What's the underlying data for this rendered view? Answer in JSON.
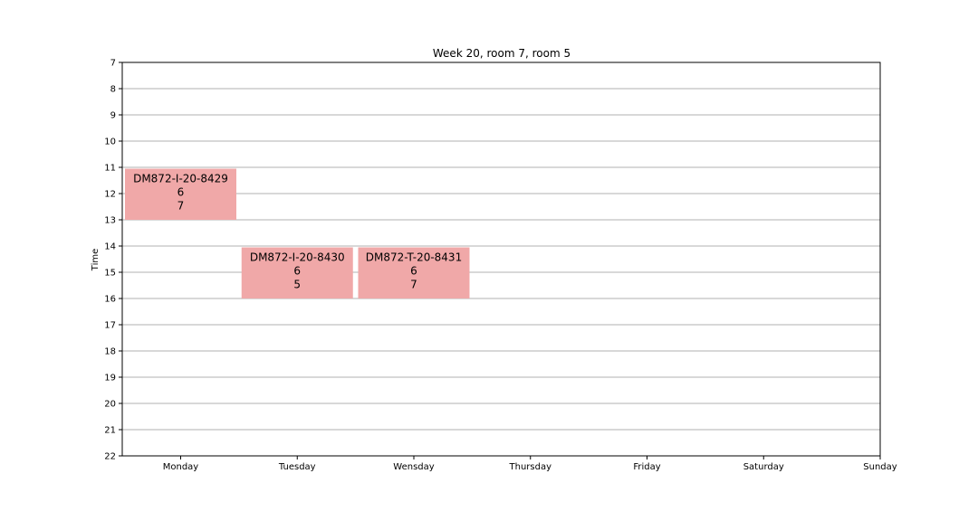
{
  "chart_data": {
    "type": "timetable",
    "title": "Week 20, room 7, room 5",
    "ylabel": "Time",
    "xlabel": "",
    "days": [
      "Monday",
      "Tuesday",
      "Wensday",
      "Thursday",
      "Friday",
      "Saturday",
      "Sunday"
    ],
    "ylim": [
      7,
      22
    ],
    "yticks": [
      7,
      8,
      9,
      10,
      11,
      12,
      13,
      14,
      15,
      16,
      17,
      18,
      19,
      20,
      21,
      22
    ],
    "grid": "horizontal",
    "events": [
      {
        "day": "Monday",
        "start": 11,
        "end": 13,
        "lines": [
          "DM872-I-20-8429",
          "6",
          "7"
        ]
      },
      {
        "day": "Tuesday",
        "start": 14,
        "end": 16,
        "lines": [
          "DM872-I-20-8430",
          "6",
          "5"
        ]
      },
      {
        "day": "Wensday",
        "start": 14,
        "end": 16,
        "lines": [
          "DM872-T-20-8431",
          "6",
          "7"
        ]
      }
    ],
    "colors": {
      "event_fill": "#f0a8a8",
      "grid": "#b0b0b0",
      "axis": "#000000"
    }
  }
}
